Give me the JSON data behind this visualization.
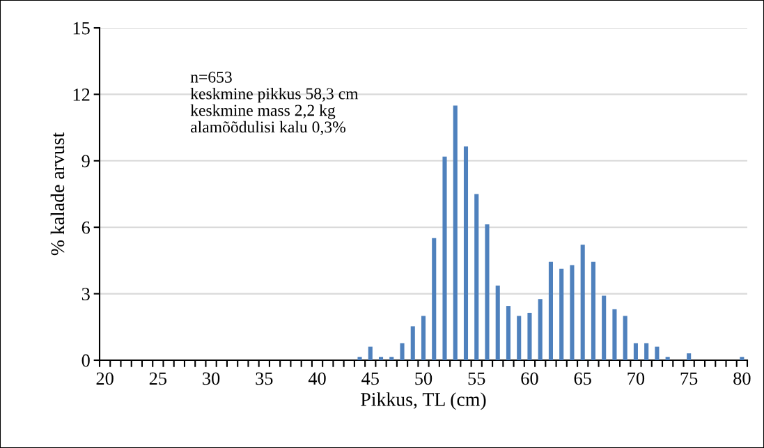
{
  "chart_data": {
    "type": "bar",
    "xlabel": "Pikkus, TL (cm)",
    "ylabel": "% kalade arvust",
    "categories": [
      "20",
      null,
      null,
      null,
      null,
      "25",
      null,
      null,
      null,
      null,
      "30",
      null,
      null,
      null,
      null,
      "35",
      null,
      null,
      null,
      null,
      "40",
      null,
      null,
      null,
      null,
      "45",
      null,
      null,
      null,
      null,
      "50",
      null,
      null,
      null,
      null,
      "55",
      null,
      null,
      null,
      null,
      "60",
      null,
      null,
      null,
      null,
      "65",
      null,
      null,
      null,
      null,
      "70",
      null,
      null,
      null,
      null,
      "75",
      null,
      null,
      null,
      null,
      "80"
    ],
    "series": [
      {
        "color": "#4f81bd",
        "values": [
          0,
          0,
          0,
          0,
          0,
          0,
          0,
          0,
          0,
          0,
          0,
          0,
          0,
          0,
          0,
          0,
          0,
          0,
          0,
          0,
          0,
          0,
          0,
          0,
          0.15,
          0.61,
          0.15,
          0.15,
          0.77,
          1.53,
          2.0,
          5.51,
          9.19,
          11.49,
          9.65,
          7.5,
          6.13,
          3.37,
          2.45,
          2.0,
          2.14,
          2.76,
          4.44,
          4.13,
          4.29,
          5.21,
          4.44,
          2.91,
          2.3,
          2.0,
          0.77,
          0.77,
          0.61,
          0.15,
          0,
          0.31,
          0,
          0,
          0,
          0,
          0.15
        ]
      }
    ],
    "ylim": [
      0,
      15
    ],
    "yticks": [
      0,
      3,
      6,
      9,
      12,
      15
    ],
    "grid": "y",
    "legend": false,
    "annotations": [
      "n=653",
      "keskmine pikkus 58,3 cm",
      "keskmine mass 2,2 kg",
      "alamõõdulisi kalu 0,3%"
    ]
  }
}
